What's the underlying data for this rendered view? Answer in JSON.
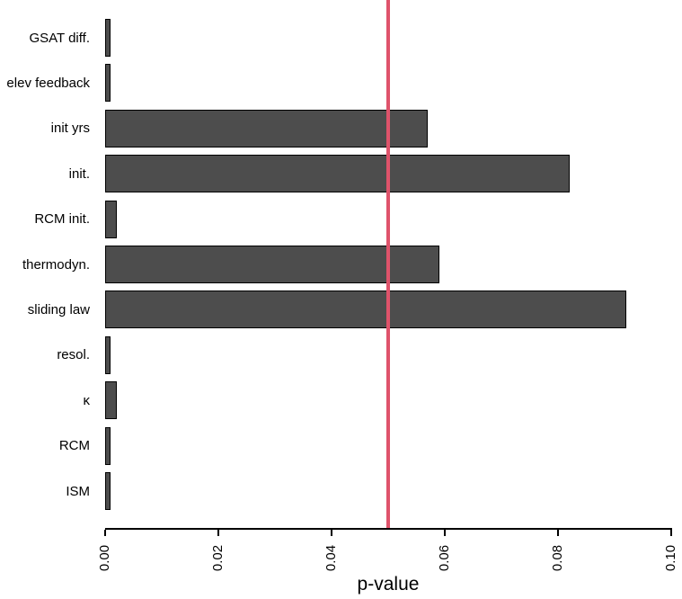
{
  "chart_data": {
    "type": "bar",
    "orientation": "horizontal",
    "title": "",
    "xlabel": "p-value",
    "ylabel": "",
    "categories": [
      "GSAT diff.",
      "elev feedback",
      "init yrs",
      "init.",
      "RCM init.",
      "thermodyn.",
      "sliding law",
      "resol.",
      "κ",
      "RCM",
      "ISM"
    ],
    "values": [
      0.001,
      0.001,
      0.057,
      0.082,
      0.002,
      0.059,
      0.092,
      0.001,
      0.002,
      0.001,
      0.001
    ],
    "xlim": [
      0.0,
      0.1
    ],
    "x_ticks": [
      0.0,
      0.02,
      0.04,
      0.06,
      0.08,
      0.1
    ],
    "x_tick_labels": [
      "0.00",
      "0.02",
      "0.04",
      "0.06",
      "0.08",
      "0.10"
    ],
    "reference_line": {
      "value": 0.05,
      "color": "#DF536B"
    },
    "bar_fill": "#4D4D4D",
    "bar_border": "#000000",
    "grid": false,
    "legend": false,
    "background": "#FFFFFF"
  }
}
